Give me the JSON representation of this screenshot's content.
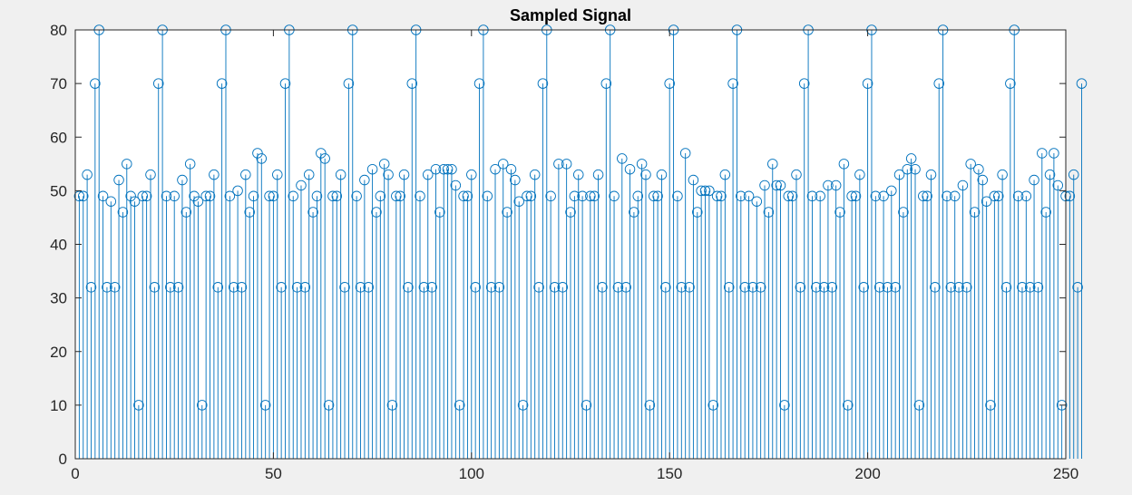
{
  "chart_data": {
    "type": "stem",
    "title": "Sampled Signal",
    "xlabel": "",
    "ylabel": "",
    "xlim": [
      0,
      250
    ],
    "ylim": [
      0,
      80
    ],
    "xticks": [
      0,
      50,
      100,
      150,
      200,
      250
    ],
    "yticks": [
      0,
      10,
      20,
      30,
      40,
      50,
      60,
      70,
      80
    ],
    "grid": false,
    "series_color": "#0072BD",
    "x_start": 1,
    "values": [
      49,
      49,
      53,
      32,
      70,
      80,
      49,
      32,
      48,
      32,
      52,
      46,
      55,
      49,
      48,
      10,
      49,
      49,
      53,
      32,
      70,
      80,
      49,
      32,
      49,
      32,
      52,
      46,
      55,
      49,
      48,
      10,
      49,
      49,
      53,
      32,
      70,
      80,
      49,
      32,
      50,
      32,
      53,
      46,
      49,
      57,
      56,
      10,
      49,
      49,
      53,
      32,
      70,
      80,
      49,
      32,
      51,
      32,
      53,
      46,
      49,
      57,
      56,
      10,
      49,
      49,
      53,
      32,
      70,
      80,
      49,
      32,
      52,
      32,
      54,
      46,
      49,
      55,
      53,
      10,
      49,
      49,
      53,
      32,
      70,
      80,
      49,
      32,
      53,
      32,
      54,
      46,
      54,
      54,
      54,
      51,
      10,
      49,
      49,
      53,
      32,
      70,
      80,
      49,
      32,
      54,
      32,
      55,
      46,
      54,
      52,
      48,
      10,
      49,
      49,
      53,
      32,
      70,
      80,
      49,
      32,
      55,
      32,
      55,
      46,
      49,
      53,
      49,
      10,
      49,
      49,
      53,
      32,
      70,
      80,
      49,
      32,
      56,
      32,
      54,
      46,
      49,
      55,
      53,
      10,
      49,
      49,
      53,
      32,
      70,
      80,
      49,
      32,
      57,
      32,
      52,
      46,
      50,
      50,
      50,
      10,
      49,
      49,
      53,
      32,
      70,
      80,
      49,
      32,
      49,
      32,
      48,
      32,
      51,
      46,
      55,
      51,
      51,
      10,
      49,
      49,
      53,
      32,
      70,
      80,
      49,
      32,
      49,
      32,
      51,
      32,
      51,
      46,
      55,
      10,
      49,
      49,
      53,
      32,
      70,
      80,
      49,
      32,
      49,
      32,
      50,
      32,
      53,
      46,
      54,
      56,
      54,
      10,
      49,
      49,
      53,
      32,
      70,
      80,
      49,
      32,
      49,
      32,
      51,
      32,
      55,
      46,
      54,
      52,
      48,
      10,
      49,
      49,
      53,
      32,
      70,
      80,
      49,
      32,
      49,
      32,
      52,
      32,
      57,
      46,
      53,
      57,
      51,
      10,
      49,
      49,
      53,
      32,
      70
    ]
  }
}
